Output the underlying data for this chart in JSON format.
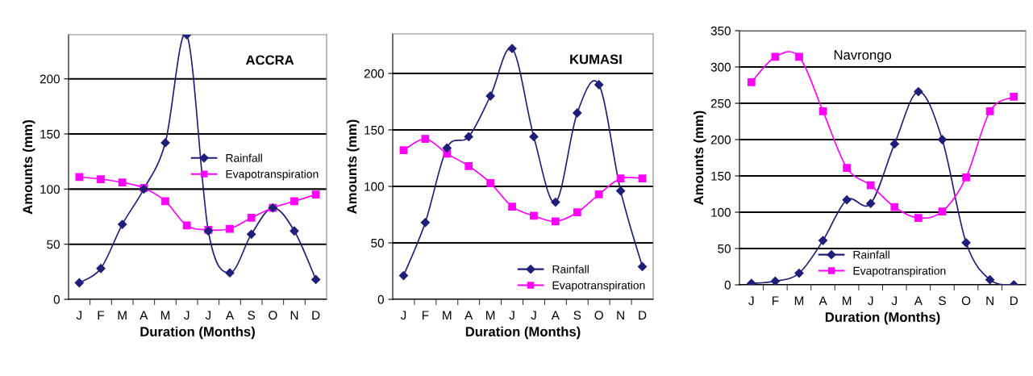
{
  "chart_data": [
    {
      "type": "line",
      "title": "ACCRA",
      "xlabel": "Duration (Months)",
      "ylabel": "Amounts (mm)",
      "categories": [
        "J",
        "F",
        "M",
        "A",
        "M",
        "J",
        "J",
        "A",
        "S",
        "O",
        "N",
        "D"
      ],
      "ylim": [
        0,
        240
      ],
      "yticks": [
        0,
        50,
        100,
        150,
        200
      ],
      "grid": "y",
      "legend": "right",
      "line_style": "solid",
      "series": [
        {
          "name": "Rainfall",
          "color": "#1f1f7a",
          "marker": "diamond",
          "values": [
            15,
            28,
            68,
            100,
            142,
            240,
            62,
            24,
            59,
            83,
            62,
            18
          ]
        },
        {
          "name": "Evapotranspiration",
          "color": "#ff00ff",
          "marker": "square",
          "values": [
            111,
            109,
            106,
            101,
            89,
            67,
            63,
            64,
            74,
            83,
            89,
            95
          ]
        }
      ]
    },
    {
      "type": "line",
      "title": "KUMASI",
      "xlabel": "Duration (Months)",
      "ylabel": "Amounts (mm)",
      "categories": [
        "J",
        "F",
        "M",
        "A",
        "M",
        "J",
        "J",
        "A",
        "S",
        "O",
        "N",
        "D"
      ],
      "ylim": [
        0,
        235
      ],
      "yticks": [
        0,
        50,
        100,
        150,
        200
      ],
      "grid": "y",
      "legend": "bottom right",
      "line_style": "solid",
      "series": [
        {
          "name": "Rainfall",
          "color": "#1f1f7a",
          "marker": "diamond",
          "values": [
            21,
            68,
            134,
            144,
            180,
            222,
            144,
            86,
            165,
            190,
            96,
            29
          ]
        },
        {
          "name": "Evapotranspiration",
          "color": "#ff00ff",
          "marker": "square",
          "values": [
            132,
            142,
            129,
            118,
            103,
            82,
            74,
            69,
            77,
            93,
            107,
            107
          ]
        }
      ]
    },
    {
      "type": "line",
      "title": "Navrongo",
      "xlabel": "Duration (Months)",
      "ylabel": "Amounts (mm)",
      "categories": [
        "J",
        "F",
        "M",
        "A",
        "M",
        "J",
        "J",
        "A",
        "S",
        "O",
        "N",
        "D"
      ],
      "ylim": [
        0,
        350
      ],
      "yticks": [
        0,
        50,
        100,
        150,
        200,
        250,
        300,
        350
      ],
      "grid": "y",
      "legend": "bottom",
      "line_style": "solid",
      "series": [
        {
          "name": "Rainfall",
          "color": "#1f1f7a",
          "marker": "diamond",
          "values": [
            2,
            5,
            16,
            61,
            117,
            112,
            194,
            266,
            200,
            58,
            7,
            0
          ]
        },
        {
          "name": "Evapotranspiration",
          "color": "#ff00ff",
          "marker": "square",
          "values": [
            279,
            314,
            314,
            239,
            161,
            137,
            107,
            92,
            101,
            148,
            239,
            259
          ]
        }
      ]
    }
  ]
}
